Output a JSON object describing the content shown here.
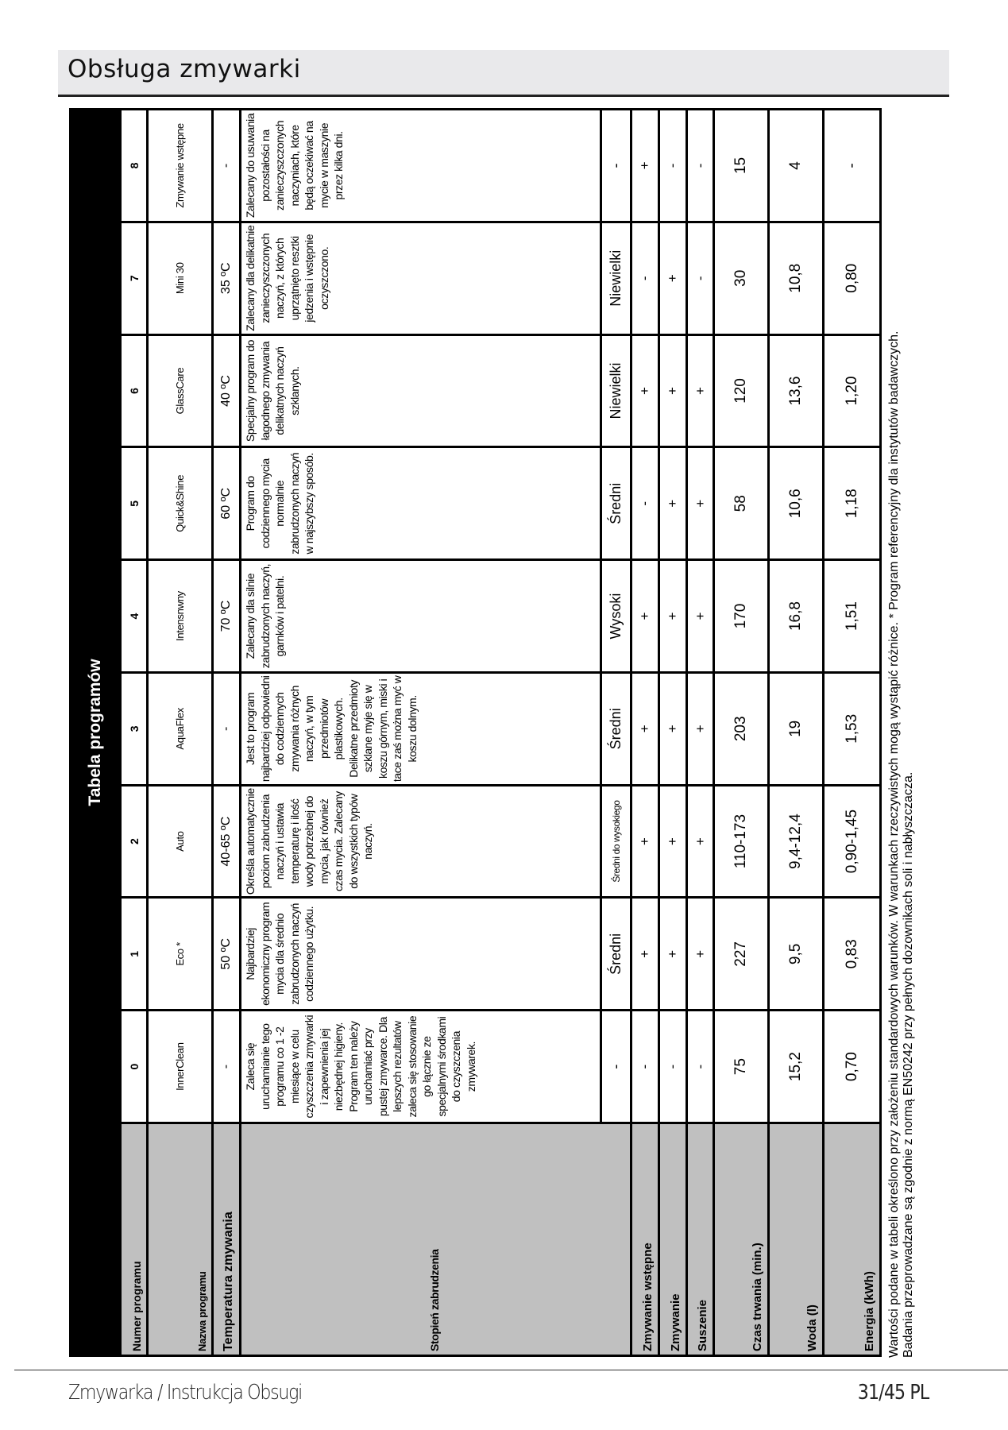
{
  "header": {
    "title": "Obsługa zmywarki"
  },
  "table": {
    "title": "Tabela programów",
    "labels": {
      "number": "Numer programu",
      "name": "Nazwa programu",
      "temperature": "Temperatura zmywania",
      "soil": "Stopień zabrudzenia",
      "prewash": "Zmywanie wstępne",
      "wash": "Zmywanie",
      "dry": "Suszenie",
      "duration": "Czas trwania (min.)",
      "water": "Woda (l)",
      "energy": "Energia (kWh)"
    },
    "programs": [
      {
        "number": "0",
        "name": "InnerClean",
        "temperature": "-",
        "description": "Zaleca się uruchamianie tego programu co 1 -2 miesiące w celu czyszczenia zmywarki i zapewnienia jej niezbędnej higieny. Program ten należy uruchamiać przy pustej zmywarce. Dla lepszych rezultatów zaleca się stosowanie go łącznie ze specjalnymi środkami do czyszczenia zmywarek.",
        "soil": "-",
        "prewash": "-",
        "wash": "-",
        "dry": "-",
        "duration": "75",
        "water": "15,2",
        "energy": "0,70"
      },
      {
        "number": "1",
        "name": "Eco *",
        "temperature": "50 ºC",
        "description": "Najbardziej ekonomiczny program mycia dla średnio zabrudzonych naczyń codziennego użytku.",
        "soil": "Średni",
        "prewash": "+",
        "wash": "+",
        "dry": "+",
        "duration": "227",
        "water": "9,5",
        "energy": "0,83"
      },
      {
        "number": "2",
        "name": "Auto",
        "temperature": "40-65 ºC",
        "description": "Określa automatycznie poziom zabrudzenia naczyń i ustawia temperaturę i ilość wody potrzebnej do mycia, jak również czas mycia. Zalecany do wszystkich typów naczyń.",
        "soil": "Średni do wysokiego",
        "prewash": "+",
        "wash": "+",
        "dry": "+",
        "duration": "110-173",
        "water": "9,4-12,4",
        "energy": "0,90-1,45"
      },
      {
        "number": "3",
        "name": "AquaFlex",
        "temperature": "-",
        "description": "Jest to program najbardziej odpowiedni do codziennych zmywania różnych naczyń, w tym przedmiotów plastikowych. Delikatne przedmioty szklane myje się w koszu górnym, miski i tace zaś można myć w koszu dolnym.",
        "soil": "Średni",
        "prewash": "+",
        "wash": "+",
        "dry": "+",
        "duration": "203",
        "water": "19",
        "energy": "1,53"
      },
      {
        "number": "4",
        "name": "Intensnwny",
        "temperature": "70 ºC",
        "description": "Zalecany dla silnie zabrudzonych naczyń, garnków i patelni.",
        "soil": "Wysoki",
        "prewash": "+",
        "wash": "+",
        "dry": "+",
        "duration": "170",
        "water": "16,8",
        "energy": "1,51"
      },
      {
        "number": "5",
        "name": "Quick&Shine",
        "temperature": "60 ºC",
        "description": "Program do codziennego mycia normalnie zabrudzonych naczyń w najszybszy sposób.",
        "soil": "Średni",
        "prewash": "-",
        "wash": "+",
        "dry": "+",
        "duration": "58",
        "water": "10,6",
        "energy": "1,18"
      },
      {
        "number": "6",
        "name": "GlassCare",
        "temperature": "40 ºC",
        "description": "Specjalny program do łagodnego zmywania delikatnych naczyń szklanych.",
        "soil": "Niewielki",
        "prewash": "+",
        "wash": "+",
        "dry": "+",
        "duration": "120",
        "water": "13,6",
        "energy": "1,20"
      },
      {
        "number": "7",
        "name": "Mini 30",
        "temperature": "35 ºC",
        "description": "Zalecany dla delikatnie zanieczyszczonych naczyń, z których uprzątnięto resztki jedzenia i wstępnie oczyszczono.",
        "soil": "Niewielki",
        "prewash": "-",
        "wash": "+",
        "dry": "-",
        "duration": "30",
        "water": "10,8",
        "energy": "0,80"
      },
      {
        "number": "8",
        "name": "Zmywanie wstępne",
        "temperature": "-",
        "description": "Zalecany do usuwania pozostałości na zanieczyszczonych naczyniach, które będą oczekiwać na mycie w maszynie przez kilka dni.",
        "soil": "-",
        "prewash": "+",
        "wash": "-",
        "dry": "-",
        "duration": "15",
        "water": "4",
        "energy": "-"
      }
    ]
  },
  "notes": {
    "line1": "Wartości podane w tabeli określono przy założeniu standardowych warunków. W warunkach rzeczywistych mogą  wystąpić różnice. * Program referencyjny dla instytutów badawczych.",
    "line2": "Badania przeprowadzane są zgodnie z normą EN50242 przy pełnych dozownikach soli i  nabłyszczacza."
  },
  "footer": {
    "left": "Zmywarka / Instrukcja Obsugi",
    "right": "31/45  PL"
  }
}
